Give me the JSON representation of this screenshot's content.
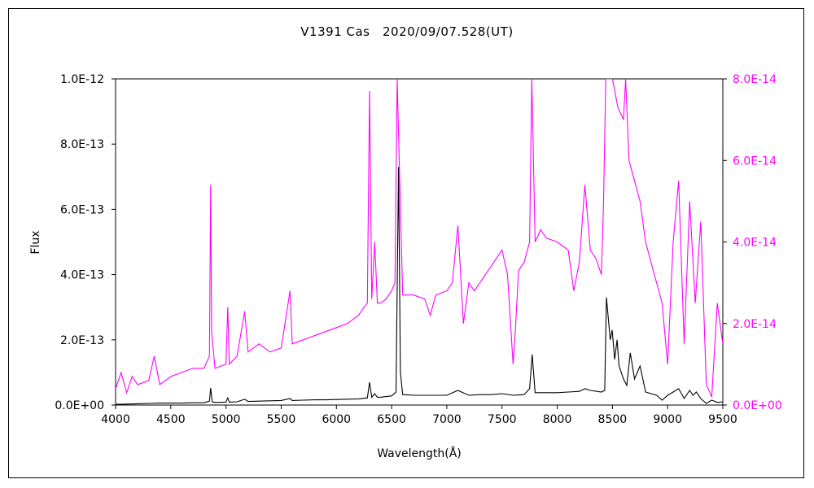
{
  "chart_data": {
    "type": "line",
    "title": "V1391 Cas　2020/09/07.528(UT)",
    "xlabel": "Wavelength(Å)",
    "ylabel": "Flux",
    "xlim": [
      4000,
      9500
    ],
    "ylim_left": [
      0,
      1e-12
    ],
    "ylim_right": [
      0,
      8e-14
    ],
    "x_ticks": [
      "4000",
      "4500",
      "5000",
      "5500",
      "6000",
      "6500",
      "7000",
      "7500",
      "8000",
      "8500",
      "9000",
      "9500"
    ],
    "y_ticks_left": [
      "0.0E+00",
      "2.0E-13",
      "4.0E-13",
      "6.0E-13",
      "8.0E-13",
      "1.0E-12"
    ],
    "y_ticks_right": [
      "0.0E+00",
      "2.0E-14",
      "4.0E-14",
      "6.0E-14",
      "8.0E-14"
    ],
    "grid": false,
    "colors": {
      "left_series": "#000000",
      "right_series": "#ff00ff"
    },
    "series": [
      {
        "axis": "left",
        "values_x": [
          4000,
          4100,
          4200,
          4300,
          4400,
          4500,
          4600,
          4700,
          4800,
          4850,
          4861,
          4875,
          4900,
          5000,
          5016,
          5030,
          5100,
          5169,
          5200,
          5300,
          5400,
          5500,
          5580,
          5600,
          5700,
          5800,
          5900,
          6000,
          6100,
          6200,
          6280,
          6300,
          6320,
          6347,
          6371,
          6400,
          6450,
          6500,
          6540,
          6563,
          6580,
          6600,
          6700,
          6800,
          6900,
          7000,
          7100,
          7200,
          7300,
          7400,
          7500,
          7600,
          7700,
          7750,
          7773,
          7800,
          7900,
          8000,
          8100,
          8200,
          8250,
          8300,
          8400,
          8430,
          8446,
          8480,
          8498,
          8520,
          8542,
          8560,
          8600,
          8630,
          8662,
          8700,
          8750,
          8800,
          8900,
          8950,
          9000,
          9050,
          9100,
          9150,
          9200,
          9230,
          9260,
          9300,
          9350,
          9400,
          9450,
          9500
        ],
        "values_y": [
          2e-15,
          3e-15,
          4e-15,
          5e-15,
          6e-15,
          6e-15,
          6e-15,
          7e-15,
          7e-15,
          1.2e-14,
          5.2e-14,
          1e-14,
          8e-15,
          9e-15,
          2.2e-14,
          9e-15,
          1e-14,
          1.8e-14,
          1.1e-14,
          1.2e-14,
          1.3e-14,
          1.4e-14,
          2e-14,
          1.4e-14,
          1.5e-14,
          1.6e-14,
          1.6e-14,
          1.7e-14,
          1.8e-14,
          1.9e-14,
          2.2e-14,
          7e-14,
          2.4e-14,
          3.5e-14,
          2.4e-14,
          2.4e-14,
          2.6e-14,
          2.8e-14,
          4e-14,
          7.3e-13,
          1e-13,
          3.2e-14,
          3e-14,
          3e-14,
          3e-14,
          3e-14,
          4.5e-14,
          3e-14,
          3.2e-14,
          3.2e-14,
          3.5e-14,
          3e-14,
          3.2e-14,
          5e-14,
          1.55e-13,
          3.8e-14,
          3.8e-14,
          3.8e-14,
          4e-14,
          4.2e-14,
          5e-14,
          4.5e-14,
          4e-14,
          4.5e-14,
          3.3e-13,
          2e-13,
          2.3e-13,
          1.4e-13,
          2e-13,
          1.2e-13,
          8e-14,
          6e-14,
          1.6e-13,
          8e-14,
          1.2e-13,
          4e-14,
          3e-14,
          1.5e-14,
          3e-14,
          4e-14,
          5e-14,
          2e-14,
          4.5e-14,
          3e-14,
          4e-14,
          2e-14,
          5e-15,
          1.5e-14,
          8e-15,
          1e-14
        ]
      },
      {
        "axis": "right",
        "values_x": [
          4000,
          4050,
          4100,
          4150,
          4200,
          4300,
          4350,
          4400,
          4500,
          4600,
          4700,
          4800,
          4850,
          4861,
          4870,
          4900,
          5000,
          5016,
          5030,
          5100,
          5169,
          5200,
          5300,
          5400,
          5500,
          5580,
          5600,
          5700,
          5800,
          5900,
          6000,
          6100,
          6200,
          6250,
          6280,
          6300,
          6320,
          6347,
          6371,
          6400,
          6450,
          6500,
          6530,
          6550,
          6600,
          6700,
          6800,
          6850,
          6900,
          7000,
          7050,
          7100,
          7150,
          7200,
          7250,
          7300,
          7400,
          7450,
          7500,
          7550,
          7600,
          7620,
          7650,
          7700,
          7750,
          7770,
          7800,
          7850,
          7900,
          8000,
          8100,
          8150,
          8200,
          8250,
          8300,
          8350,
          8400,
          8420,
          8440,
          8460,
          8500,
          8550,
          8600,
          8620,
          8650,
          8700,
          8750,
          8800,
          8850,
          8900,
          8950,
          9000,
          9050,
          9100,
          9150,
          9200,
          9250,
          9300,
          9350,
          9400,
          9450,
          9500
        ],
        "values_y": [
          4e-15,
          8e-15,
          3e-15,
          7e-15,
          5e-15,
          6e-15,
          1.2e-14,
          5e-15,
          7e-15,
          8e-15,
          9e-15,
          9e-15,
          1.2e-14,
          5.4e-14,
          1.8e-14,
          9e-15,
          1e-14,
          2.4e-14,
          1e-14,
          1.2e-14,
          2.3e-14,
          1.3e-14,
          1.5e-14,
          1.3e-14,
          1.4e-14,
          2.8e-14,
          1.5e-14,
          1.6e-14,
          1.7e-14,
          1.8e-14,
          1.9e-14,
          2e-14,
          2.2e-14,
          2.4e-14,
          2.5e-14,
          7.7e-14,
          2.6e-14,
          4e-14,
          2.5e-14,
          2.5e-14,
          2.6e-14,
          2.8e-14,
          3e-14,
          8e-14,
          2.7e-14,
          2.7e-14,
          2.6e-14,
          2.2e-14,
          2.7e-14,
          2.8e-14,
          3e-14,
          4.4e-14,
          2e-14,
          3e-14,
          2.8e-14,
          3e-14,
          3.4e-14,
          3.6e-14,
          3.8e-14,
          3.2e-14,
          1e-14,
          1.8e-14,
          3.3e-14,
          3.5e-14,
          4e-14,
          8e-14,
          4e-14,
          4.3e-14,
          4.1e-14,
          4e-14,
          3.8e-14,
          2.8e-14,
          3.5e-14,
          5.4e-14,
          3.8e-14,
          3.6e-14,
          3.2e-14,
          5e-14,
          8e-14,
          8e-14,
          8e-14,
          7.3e-14,
          7e-14,
          8e-14,
          6e-14,
          5.5e-14,
          5e-14,
          4e-14,
          3.5e-14,
          3e-14,
          2.5e-14,
          1e-14,
          4e-14,
          5.5e-14,
          1.5e-14,
          5e-14,
          2.5e-14,
          4.5e-14,
          5e-15,
          2e-15,
          2.5e-14,
          1.5e-14
        ]
      }
    ]
  }
}
